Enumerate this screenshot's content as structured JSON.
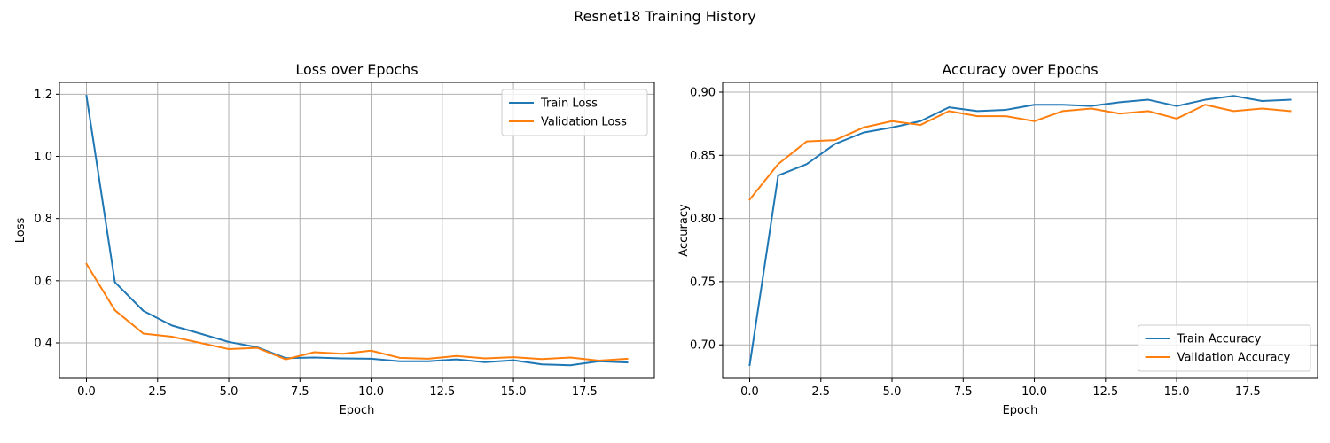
{
  "figure": {
    "suptitle": "Resnet18 Training History"
  },
  "chart_data": [
    {
      "type": "line",
      "title": "Loss over Epochs",
      "xlabel": "Epoch",
      "ylabel": "Loss",
      "xlim": [
        -0.95,
        19.95
      ],
      "ylim": [
        0.286,
        1.238
      ],
      "xticks": [
        0.0,
        2.5,
        5.0,
        7.5,
        10.0,
        12.5,
        15.0,
        17.5
      ],
      "xtick_labels": [
        "0.0",
        "2.5",
        "5.0",
        "7.5",
        "10.0",
        "12.5",
        "15.0",
        "17.5"
      ],
      "yticks": [
        0.4,
        0.6,
        0.8,
        1.0,
        1.2
      ],
      "ytick_labels": [
        "0.4",
        "0.6",
        "0.8",
        "1.0",
        "1.2"
      ],
      "grid": true,
      "legend_position": "top-right",
      "x": [
        0,
        1,
        2,
        3,
        4,
        5,
        6,
        7,
        8,
        9,
        10,
        11,
        12,
        13,
        14,
        15,
        16,
        17,
        18,
        19
      ],
      "series": [
        {
          "name": "Train Loss",
          "color": "#1f77b4",
          "values": [
            1.195,
            0.595,
            0.503,
            0.456,
            0.43,
            0.403,
            0.386,
            0.351,
            0.353,
            0.35,
            0.349,
            0.341,
            0.341,
            0.347,
            0.338,
            0.344,
            0.331,
            0.328,
            0.341,
            0.337
          ]
        },
        {
          "name": "Validation Loss",
          "color": "#ff7f0e",
          "values": [
            0.654,
            0.505,
            0.43,
            0.42,
            0.4,
            0.38,
            0.384,
            0.347,
            0.37,
            0.365,
            0.375,
            0.352,
            0.349,
            0.358,
            0.35,
            0.354,
            0.348,
            0.353,
            0.343,
            0.349
          ]
        }
      ]
    },
    {
      "type": "line",
      "title": "Accuracy over Epochs",
      "xlabel": "Epoch",
      "ylabel": "Accuracy",
      "xlim": [
        -0.95,
        19.95
      ],
      "ylim": [
        0.6735,
        0.9077
      ],
      "xticks": [
        0.0,
        2.5,
        5.0,
        7.5,
        10.0,
        12.5,
        15.0,
        17.5
      ],
      "xtick_labels": [
        "0.0",
        "2.5",
        "5.0",
        "7.5",
        "10.0",
        "12.5",
        "15.0",
        "17.5"
      ],
      "yticks": [
        0.7,
        0.75,
        0.8,
        0.85,
        0.9
      ],
      "ytick_labels": [
        "0.70",
        "0.75",
        "0.80",
        "0.85",
        "0.90"
      ],
      "grid": true,
      "legend_position": "bottom-right",
      "x": [
        0,
        1,
        2,
        3,
        4,
        5,
        6,
        7,
        8,
        9,
        10,
        11,
        12,
        13,
        14,
        15,
        16,
        17,
        18,
        19
      ],
      "series": [
        {
          "name": "Train Accuracy",
          "color": "#1f77b4",
          "values": [
            0.684,
            0.834,
            0.843,
            0.859,
            0.868,
            0.872,
            0.877,
            0.888,
            0.885,
            0.886,
            0.89,
            0.89,
            0.889,
            0.892,
            0.894,
            0.889,
            0.894,
            0.897,
            0.893,
            0.894
          ]
        },
        {
          "name": "Validation Accuracy",
          "color": "#ff7f0e",
          "values": [
            0.815,
            0.843,
            0.861,
            0.862,
            0.872,
            0.877,
            0.874,
            0.885,
            0.881,
            0.881,
            0.877,
            0.885,
            0.887,
            0.883,
            0.885,
            0.879,
            0.89,
            0.885,
            0.887,
            0.885
          ]
        }
      ]
    }
  ]
}
